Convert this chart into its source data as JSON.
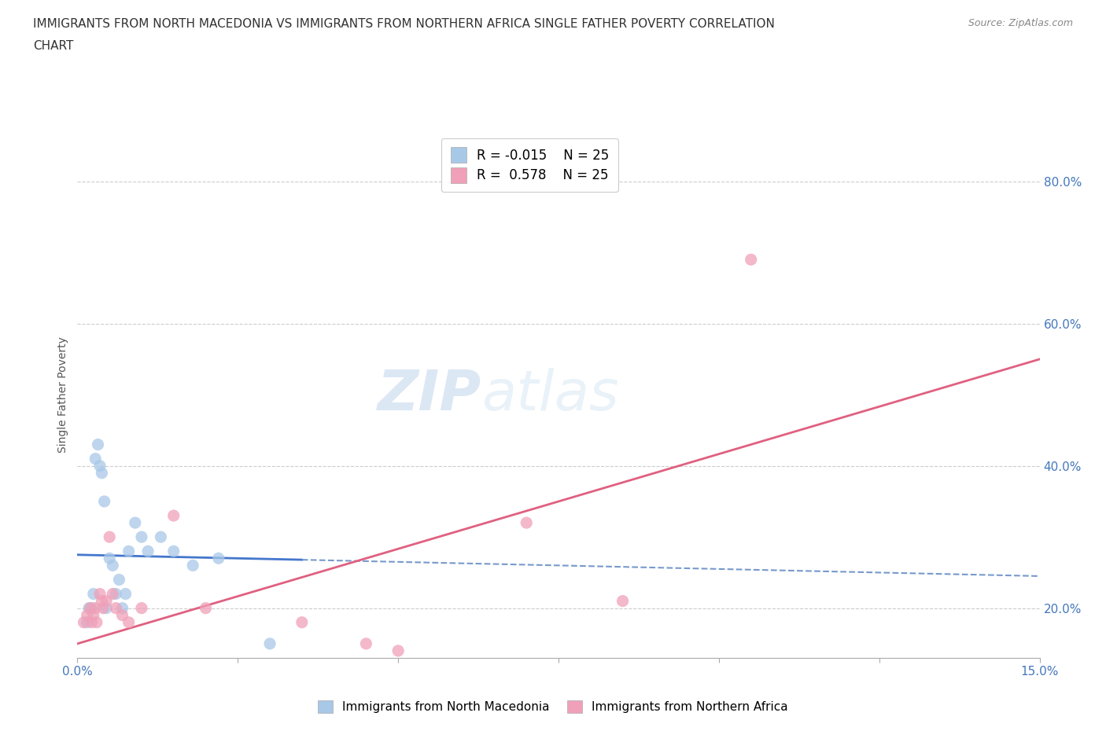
{
  "title_line1": "IMMIGRANTS FROM NORTH MACEDONIA VS IMMIGRANTS FROM NORTHERN AFRICA SINGLE FATHER POVERTY CORRELATION",
  "title_line2": "CHART",
  "source": "Source: ZipAtlas.com",
  "ylabel": "Single Father Poverty",
  "xlim": [
    0.0,
    15.0
  ],
  "ylim": [
    13.0,
    87.0
  ],
  "y_ticks": [
    20.0,
    40.0,
    60.0,
    80.0
  ],
  "x_ticks": [
    0.0,
    2.5,
    5.0,
    7.5,
    10.0,
    12.5,
    15.0
  ],
  "legend_r1": "R = -0.015",
  "legend_n1": "N = 25",
  "legend_r2": "R =  0.578",
  "legend_n2": "N = 25",
  "color_macedonia": "#a8c8e8",
  "color_africa": "#f0a0b8",
  "color_macedonia_line_solid": "#4477cc",
  "color_macedonia_line_dash": "#7799cc",
  "color_africa_line": "#e06080",
  "watermark_zip": "ZIP",
  "watermark_atlas": "atlas",
  "scatter_macedonia_x": [
    0.15,
    0.18,
    0.22,
    0.25,
    0.28,
    0.32,
    0.35,
    0.38,
    0.42,
    0.45,
    0.5,
    0.55,
    0.6,
    0.65,
    0.7,
    0.75,
    0.8,
    0.9,
    1.0,
    1.1,
    1.3,
    1.5,
    1.8,
    2.2,
    3.0
  ],
  "scatter_macedonia_y": [
    18,
    20,
    20,
    22,
    41,
    43,
    40,
    39,
    35,
    20,
    27,
    26,
    22,
    24,
    20,
    22,
    28,
    32,
    30,
    28,
    30,
    28,
    26,
    27,
    15
  ],
  "scatter_africa_x": [
    0.1,
    0.15,
    0.2,
    0.22,
    0.25,
    0.28,
    0.3,
    0.35,
    0.38,
    0.4,
    0.45,
    0.5,
    0.55,
    0.6,
    0.7,
    0.8,
    1.0,
    1.5,
    2.0,
    3.5,
    4.5,
    5.0,
    7.0,
    8.5,
    10.5
  ],
  "scatter_africa_y": [
    18,
    19,
    20,
    18,
    19,
    20,
    18,
    22,
    21,
    20,
    21,
    30,
    22,
    20,
    19,
    18,
    20,
    33,
    20,
    18,
    15,
    14,
    32,
    21,
    69
  ],
  "mac_trend_x": [
    0.0,
    15.0
  ],
  "mac_trend_y": [
    27.5,
    24.5
  ],
  "afr_trend_x": [
    0.0,
    15.0
  ],
  "afr_trend_y": [
    15.0,
    55.0
  ],
  "grid_color": "#cccccc",
  "background_color": "#ffffff"
}
